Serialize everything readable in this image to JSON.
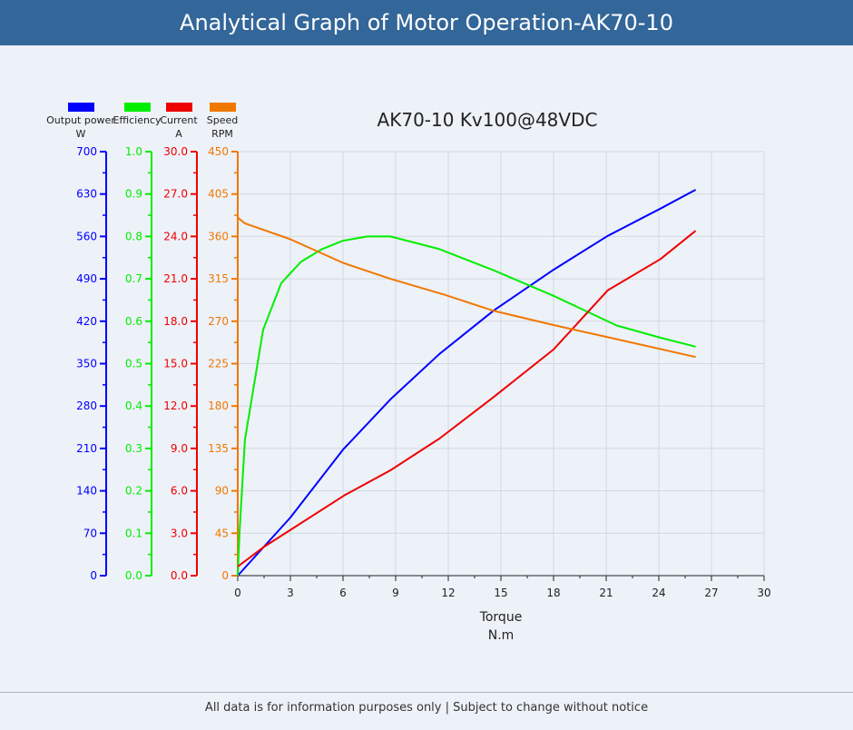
{
  "header": {
    "title": "Analytical Graph of Motor Operation-AK70-10"
  },
  "footer": {
    "text": "All data is for information purposes only | Subject to change without notice"
  },
  "chart_data": {
    "type": "line",
    "title": "AK70-10 Kv100@48VDC",
    "xlabel": "Torque",
    "xunit": "N.m",
    "xlim": [
      0,
      30
    ],
    "xticks": [
      0,
      3,
      6,
      9,
      12,
      15,
      18,
      21,
      24,
      27,
      30
    ],
    "grid": true,
    "legend_placement": "top-left",
    "axes": [
      {
        "name": "Output power",
        "unit": "W",
        "color": "#0000ff",
        "ylim": [
          0,
          700
        ],
        "ticks": [
          "0",
          "70",
          "140",
          "210",
          "280",
          "350",
          "420",
          "490",
          "560",
          "630",
          "700"
        ]
      },
      {
        "name": "Efficiency",
        "unit": "",
        "color": "#00ee00",
        "ylim": [
          0,
          1
        ],
        "ticks": [
          "0.0",
          "0.1",
          "0.2",
          "0.3",
          "0.4",
          "0.5",
          "0.6",
          "0.7",
          "0.8",
          "0.9",
          "1.0"
        ]
      },
      {
        "name": "Current",
        "unit": "A",
        "color": "#ee0000",
        "ylim": [
          0,
          30
        ],
        "ticks": [
          "0.0",
          "3.0",
          "6.0",
          "9.0",
          "12.0",
          "15.0",
          "18.0",
          "21.0",
          "24.0",
          "27.0",
          "30.0"
        ]
      },
      {
        "name": "Speed",
        "unit": "RPM",
        "color": "#f07800",
        "ylim": [
          0,
          450
        ],
        "ticks": [
          "0",
          "45",
          "90",
          "135",
          "180",
          "225",
          "270",
          "315",
          "360",
          "405",
          "450"
        ]
      }
    ],
    "series": [
      {
        "name": "Output power",
        "axis": 0,
        "x": [
          0,
          3,
          6,
          8.7,
          11.5,
          14.6,
          18,
          21.1,
          24.1,
          26.1
        ],
        "y": [
          0,
          96,
          208,
          291,
          366,
          438,
          505,
          561,
          606,
          637
        ]
      },
      {
        "name": "Efficiency",
        "axis": 1,
        "x": [
          0,
          0.1,
          0.41,
          1.45,
          2.48,
          3.6,
          4.8,
          6.0,
          7.4,
          8.7,
          11.5,
          14.6,
          18,
          21.6,
          24.2,
          26.1
        ],
        "y": [
          0,
          0.1,
          0.32,
          0.58,
          0.69,
          0.74,
          0.77,
          0.79,
          0.8,
          0.8,
          0.77,
          0.72,
          0.66,
          0.59,
          0.56,
          0.54
        ]
      },
      {
        "name": "Current",
        "axis": 2,
        "x": [
          0,
          1.45,
          6.1,
          8.7,
          11.5,
          14.6,
          18,
          21.1,
          24.1,
          26.1
        ],
        "y": [
          0.64,
          2.0,
          5.7,
          7.45,
          9.7,
          12.65,
          16.0,
          20.2,
          22.4,
          24.4
        ]
      },
      {
        "name": "Speed",
        "axis": 3,
        "x": [
          0,
          0.4,
          3,
          6,
          8.7,
          11.8,
          14.6,
          18,
          21.1,
          26.1
        ],
        "y": [
          380,
          374,
          357,
          332,
          315,
          298,
          281,
          266,
          253,
          232
        ]
      }
    ]
  }
}
